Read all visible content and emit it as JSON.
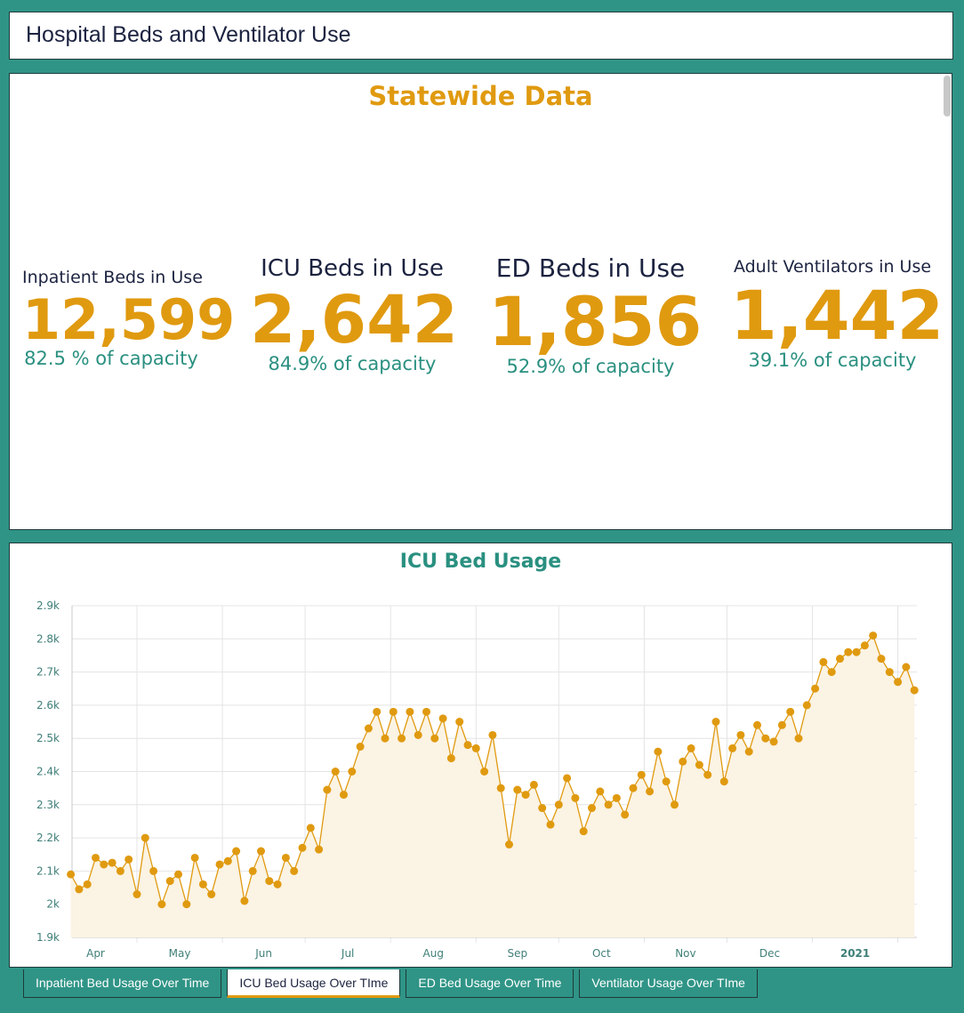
{
  "header": {
    "title": "Hospital Beds and Ventilator Use"
  },
  "summary": {
    "title": "Statewide Data",
    "kpis": [
      {
        "label": "Inpatient Beds in Use",
        "value": "12,599",
        "capacity": "82.5 % of capacity"
      },
      {
        "label": "ICU Beds in Use",
        "value": "2,642",
        "capacity": "84.9% of capacity"
      },
      {
        "label": "ED Beds in Use",
        "value": "1,856",
        "capacity": "52.9% of capacity"
      },
      {
        "label": "Adult Ventilators in Use",
        "value": "1,442",
        "capacity": "39.1% of capacity"
      }
    ]
  },
  "colors": {
    "accent": "#e09a10",
    "teal": "#2f9486",
    "text_teal": "#2a9080",
    "navy": "#1c2340",
    "area_fill": "#fbf3e3"
  },
  "chart_data": {
    "type": "area",
    "title": "ICU Bed Usage",
    "xlabel": "",
    "ylabel": "",
    "ylim": [
      1900,
      2900
    ],
    "yticks": [
      "1.9k",
      "2k",
      "2.1k",
      "2.2k",
      "2.3k",
      "2.4k",
      "2.5k",
      "2.6k",
      "2.7k",
      "2.8k",
      "2.9k"
    ],
    "xticks": [
      {
        "label": "Apr",
        "date": "2020-04-01"
      },
      {
        "label": "May",
        "date": "2020-05-01"
      },
      {
        "label": "Jun",
        "date": "2020-06-01"
      },
      {
        "label": "Jul",
        "date": "2020-07-01"
      },
      {
        "label": "Aug",
        "date": "2020-08-01"
      },
      {
        "label": "Sep",
        "date": "2020-09-01"
      },
      {
        "label": "Oct",
        "date": "2020-10-01"
      },
      {
        "label": "Nov",
        "date": "2020-11-01"
      },
      {
        "label": "Dec",
        "date": "2020-12-01"
      },
      {
        "label": "2021",
        "date": "2021-01-01"
      },
      {
        "label": "",
        "date": "2021-02-01"
      }
    ],
    "xlim": [
      "2020-04-01",
      "2021-02-10"
    ],
    "grid": true,
    "points": [
      [
        "2020-04-07",
        2090
      ],
      [
        "2020-04-10",
        2045
      ],
      [
        "2020-04-13",
        2060
      ],
      [
        "2020-04-16",
        2140
      ],
      [
        "2020-04-19",
        2120
      ],
      [
        "2020-04-22",
        2125
      ],
      [
        "2020-04-25",
        2100
      ],
      [
        "2020-04-28",
        2135
      ],
      [
        "2020-05-01",
        2030
      ],
      [
        "2020-05-04",
        2200
      ],
      [
        "2020-05-07",
        2100
      ],
      [
        "2020-05-10",
        2000
      ],
      [
        "2020-05-13",
        2070
      ],
      [
        "2020-05-16",
        2090
      ],
      [
        "2020-05-19",
        2000
      ],
      [
        "2020-05-22",
        2140
      ],
      [
        "2020-05-25",
        2060
      ],
      [
        "2020-05-28",
        2030
      ],
      [
        "2020-05-31",
        2120
      ],
      [
        "2020-06-03",
        2130
      ],
      [
        "2020-06-06",
        2160
      ],
      [
        "2020-06-09",
        2010
      ],
      [
        "2020-06-12",
        2100
      ],
      [
        "2020-06-15",
        2160
      ],
      [
        "2020-06-18",
        2070
      ],
      [
        "2020-06-21",
        2060
      ],
      [
        "2020-06-24",
        2140
      ],
      [
        "2020-06-27",
        2100
      ],
      [
        "2020-06-30",
        2170
      ],
      [
        "2020-07-03",
        2230
      ],
      [
        "2020-07-06",
        2165
      ],
      [
        "2020-07-09",
        2345
      ],
      [
        "2020-07-12",
        2400
      ],
      [
        "2020-07-15",
        2330
      ],
      [
        "2020-07-18",
        2400
      ],
      [
        "2020-07-21",
        2475
      ],
      [
        "2020-07-24",
        2530
      ],
      [
        "2020-07-27",
        2580
      ],
      [
        "2020-07-30",
        2500
      ],
      [
        "2020-08-02",
        2580
      ],
      [
        "2020-08-05",
        2500
      ],
      [
        "2020-08-08",
        2580
      ],
      [
        "2020-08-11",
        2510
      ],
      [
        "2020-08-14",
        2580
      ],
      [
        "2020-08-17",
        2500
      ],
      [
        "2020-08-20",
        2560
      ],
      [
        "2020-08-23",
        2440
      ],
      [
        "2020-08-26",
        2550
      ],
      [
        "2020-08-29",
        2480
      ],
      [
        "2020-09-01",
        2470
      ],
      [
        "2020-09-04",
        2400
      ],
      [
        "2020-09-07",
        2510
      ],
      [
        "2020-09-10",
        2350
      ],
      [
        "2020-09-13",
        2180
      ],
      [
        "2020-09-16",
        2345
      ],
      [
        "2020-09-19",
        2330
      ],
      [
        "2020-09-22",
        2360
      ],
      [
        "2020-09-25",
        2290
      ],
      [
        "2020-09-28",
        2240
      ],
      [
        "2020-10-01",
        2300
      ],
      [
        "2020-10-04",
        2380
      ],
      [
        "2020-10-07",
        2320
      ],
      [
        "2020-10-10",
        2220
      ],
      [
        "2020-10-13",
        2290
      ],
      [
        "2020-10-16",
        2340
      ],
      [
        "2020-10-19",
        2300
      ],
      [
        "2020-10-22",
        2320
      ],
      [
        "2020-10-25",
        2270
      ],
      [
        "2020-10-28",
        2350
      ],
      [
        "2020-10-31",
        2390
      ],
      [
        "2020-11-03",
        2340
      ],
      [
        "2020-11-06",
        2460
      ],
      [
        "2020-11-09",
        2370
      ],
      [
        "2020-11-12",
        2300
      ],
      [
        "2020-11-15",
        2430
      ],
      [
        "2020-11-18",
        2470
      ],
      [
        "2020-11-21",
        2420
      ],
      [
        "2020-11-24",
        2390
      ],
      [
        "2020-11-27",
        2550
      ],
      [
        "2020-11-30",
        2370
      ],
      [
        "2020-12-03",
        2470
      ],
      [
        "2020-12-06",
        2510
      ],
      [
        "2020-12-09",
        2460
      ],
      [
        "2020-12-12",
        2540
      ],
      [
        "2020-12-15",
        2500
      ],
      [
        "2020-12-18",
        2490
      ],
      [
        "2020-12-21",
        2540
      ],
      [
        "2020-12-24",
        2580
      ],
      [
        "2020-12-27",
        2500
      ],
      [
        "2020-12-30",
        2600
      ],
      [
        "2021-01-02",
        2650
      ],
      [
        "2021-01-05",
        2730
      ],
      [
        "2021-01-08",
        2700
      ],
      [
        "2021-01-11",
        2740
      ],
      [
        "2021-01-14",
        2760
      ],
      [
        "2021-01-17",
        2760
      ],
      [
        "2021-01-20",
        2780
      ],
      [
        "2021-01-23",
        2810
      ],
      [
        "2021-01-26",
        2740
      ],
      [
        "2021-01-29",
        2700
      ],
      [
        "2021-02-01",
        2670
      ],
      [
        "2021-02-04",
        2715
      ],
      [
        "2021-02-07",
        2645
      ]
    ]
  },
  "tabs": [
    {
      "label": "Inpatient Bed Usage Over Time",
      "active": false
    },
    {
      "label": "ICU Bed Usage Over TIme",
      "active": true
    },
    {
      "label": "ED Bed Usage Over Time",
      "active": false
    },
    {
      "label": "Ventilator Usage Over TIme",
      "active": false
    }
  ]
}
